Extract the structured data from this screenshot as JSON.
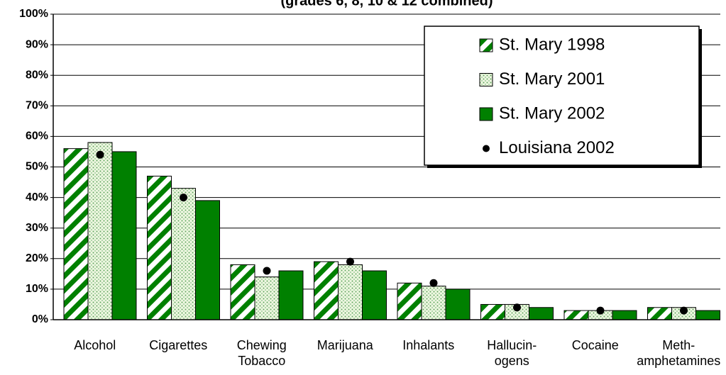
{
  "chart_data": {
    "type": "bar",
    "title": "(grades 6, 8, 10 & 12 combined)",
    "categories": [
      "Alcohol",
      "Cigarettes",
      "Chewing\nTobacco",
      "Marijuana",
      "Inhalants",
      "Hallucin-\nogens",
      "Cocaine",
      "Meth-\namphetamines"
    ],
    "series": [
      {
        "name": "St. Mary 1998",
        "color": "#008000",
        "style": "stripes",
        "values": [
          56,
          47,
          18,
          19,
          12,
          5,
          3,
          4
        ]
      },
      {
        "name": "St. Mary 2001",
        "color": "#008000",
        "style": "dots",
        "values": [
          58,
          43,
          14,
          18,
          11,
          5,
          3,
          4
        ]
      },
      {
        "name": "St. Mary 2002",
        "color": "#008000",
        "style": "solid",
        "values": [
          55,
          39,
          16,
          16,
          10,
          4,
          3,
          3
        ]
      },
      {
        "name": "Louisiana 2002",
        "color": "#000000",
        "style": "point",
        "values": [
          54,
          40,
          16,
          19,
          12,
          4,
          3,
          3
        ]
      }
    ],
    "ylim": [
      0,
      100
    ],
    "yticks": [
      {
        "value": 0,
        "label": "0%"
      },
      {
        "value": 10,
        "label": "10%"
      },
      {
        "value": 20,
        "label": "20%"
      },
      {
        "value": 30,
        "label": "30%"
      },
      {
        "value": 40,
        "label": "40%"
      },
      {
        "value": 50,
        "label": "50%"
      },
      {
        "value": 60,
        "label": "60%"
      },
      {
        "value": 70,
        "label": "70%"
      },
      {
        "value": 80,
        "label": "80%"
      },
      {
        "value": 90,
        "label": "90%"
      },
      {
        "value": 100,
        "label": "100%"
      }
    ],
    "grid": true,
    "legend": "upper right"
  }
}
